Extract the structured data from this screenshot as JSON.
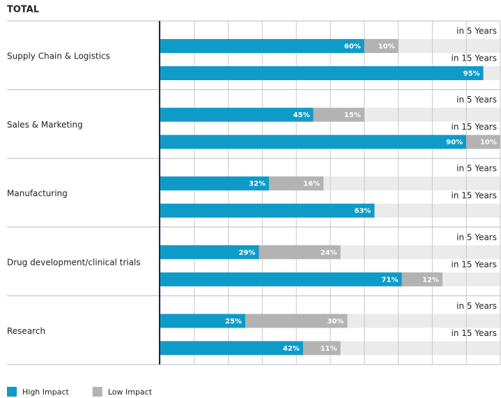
{
  "chart_data": {
    "type": "bar",
    "orientation": "horizontal",
    "stacked": true,
    "title": "TOTAL",
    "groups": [
      "Supply Chain & Logistics",
      "Sales & Marketing",
      "Manufacturing",
      "Drug development/clinical trials",
      "Research"
    ],
    "categories": [
      "in 5 Years",
      "in 15 Years",
      "in 5 Years",
      "in 15 Years",
      "in 5 Years",
      "in 15 Years",
      "in 5 Years",
      "in 15 Years",
      "in 5 Years",
      "in 15 Years"
    ],
    "series": [
      {
        "name": "High Impact",
        "color": "#0f9bc8",
        "values": [
          60,
          95,
          45,
          90,
          32,
          63,
          29,
          71,
          25,
          42
        ],
        "value_labels": [
          "60%",
          "95%",
          "45%",
          "90%",
          "32%",
          "63%",
          "29%",
          "71%",
          "25%",
          "42%"
        ]
      },
      {
        "name": "Low Impact",
        "color": "#b3b3b3",
        "values": [
          10,
          null,
          15,
          10,
          16,
          null,
          24,
          12,
          30,
          11
        ],
        "value_labels": [
          "10%",
          null,
          "15%",
          "10%",
          "16%",
          null,
          "24%",
          "12%",
          "30%",
          "11%"
        ]
      }
    ],
    "xlim": [
      0,
      100
    ],
    "xticks": [
      0,
      10,
      20,
      30,
      40,
      50,
      60,
      70,
      80,
      90,
      100
    ],
    "grid": true
  }
}
